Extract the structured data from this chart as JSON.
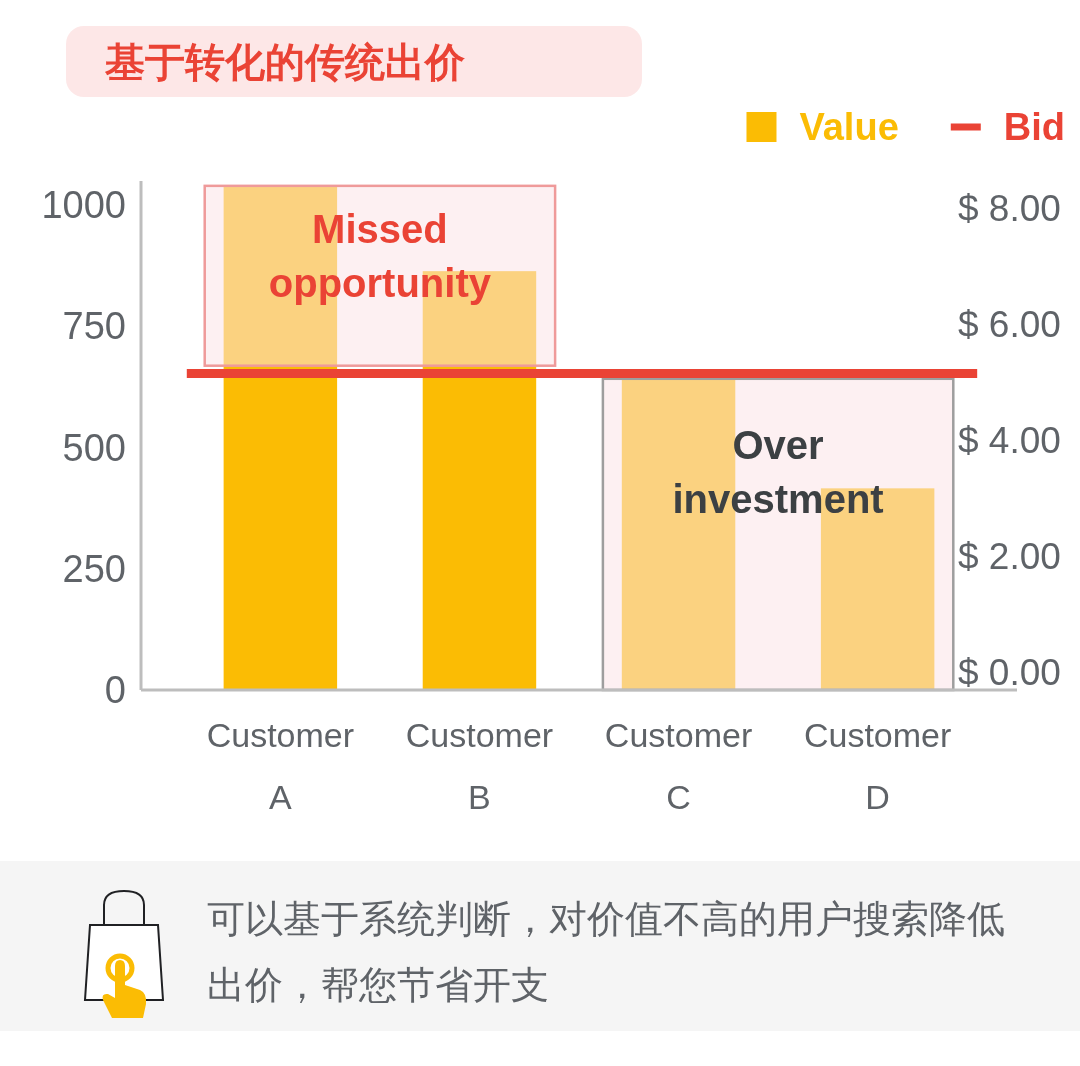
{
  "chart_data": {
    "type": "bar",
    "title": "基于转化的传统出价",
    "categories": [
      "Customer A",
      "Customer B",
      "Customer C",
      "Customer D"
    ],
    "series": [
      {
        "name": "Value",
        "color": "#fbbc04",
        "values": [
          1040,
          864,
          642,
          416
        ]
      }
    ],
    "ylim": [
      0,
      1050
    ],
    "yticks": [
      0,
      250,
      500,
      750,
      1000
    ],
    "y2lim": [
      -0.31,
      8.47
    ],
    "y2ticks": [
      {
        "value": 0,
        "label": "$ 0.00"
      },
      {
        "value": 2,
        "label": "$ 2.00"
      },
      {
        "value": 4,
        "label": "$ 4.00"
      },
      {
        "value": 6,
        "label": "$ 6.00"
      },
      {
        "value": 8,
        "label": "$ 8.00"
      }
    ],
    "ref_lines": [
      {
        "axis": "y2",
        "value": 5.15,
        "label": "Bid",
        "color": "#ea4335"
      }
    ],
    "bands": [
      {
        "axis": "y",
        "from": 669,
        "to": 1040,
        "label": "Missed opportunity",
        "color": "#fbe3e8"
      },
      {
        "axis": "y",
        "from": 0,
        "to": 642,
        "label": "Over investment",
        "color": "#fbe3e8"
      }
    ],
    "legend": "top right",
    "annotations": [
      "可以基于系统判断，对价值不高的用户搜索降低出价，帮您节省开支"
    ]
  }
}
